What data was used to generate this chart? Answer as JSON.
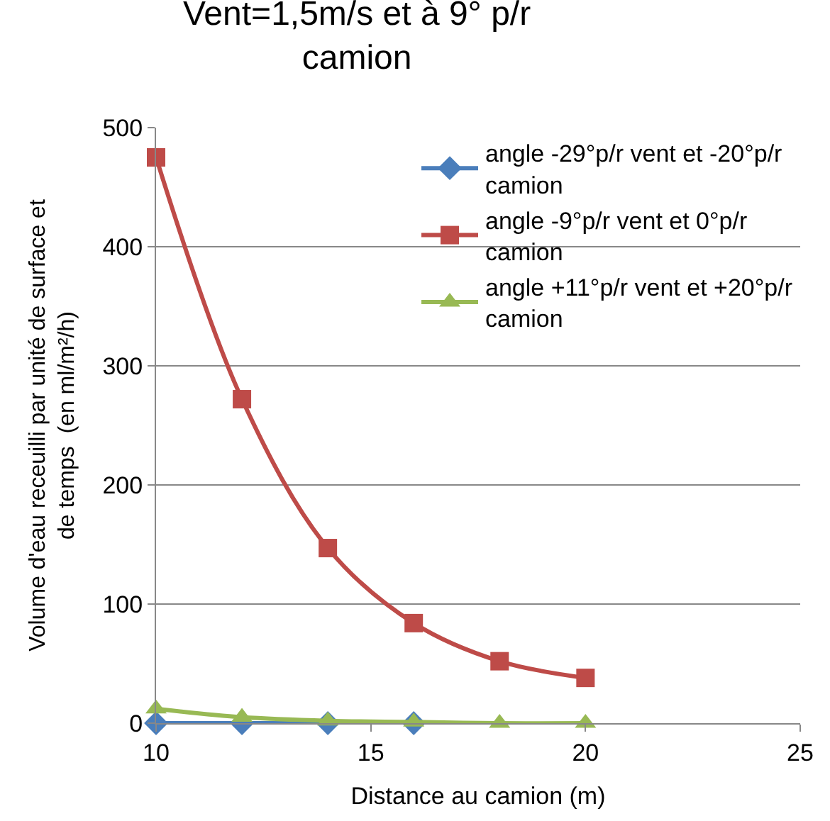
{
  "chart_data": {
    "type": "line",
    "title": "Vent=1,5m/s et à 9° p/r camion",
    "xlabel": "Distance au camion (m)",
    "ylabel": "Volume d'eau receuilli par unité de surface et de temps  (en ml/m²/h)",
    "xlim": [
      10,
      25
    ],
    "xticks": [
      10,
      15,
      20,
      25
    ],
    "ylim": [
      0,
      500
    ],
    "yticks": [
      0,
      100,
      200,
      300,
      400,
      500
    ],
    "grid": "y",
    "legend": "top right",
    "series": [
      {
        "name": "angle -29°p/r vent et -20°p/r camion",
        "color": "#4a7ebb",
        "marker": "diamond",
        "x": [
          10,
          12,
          14,
          16
        ],
        "values": [
          0,
          0,
          0,
          0
        ]
      },
      {
        "name": "angle -9°p/r vent et 0°p/r camion",
        "color": "#be4b48",
        "marker": "square",
        "x": [
          10,
          12,
          14,
          16,
          18,
          20
        ],
        "values": [
          475,
          272,
          147,
          84,
          52,
          38
        ]
      },
      {
        "name": "angle +11°p/r vent et +20°p/r camion",
        "color": "#98b954",
        "marker": "triangle",
        "x": [
          10,
          12,
          14,
          16,
          18,
          20
        ],
        "values": [
          12,
          5,
          2,
          1,
          0,
          0
        ]
      }
    ]
  }
}
